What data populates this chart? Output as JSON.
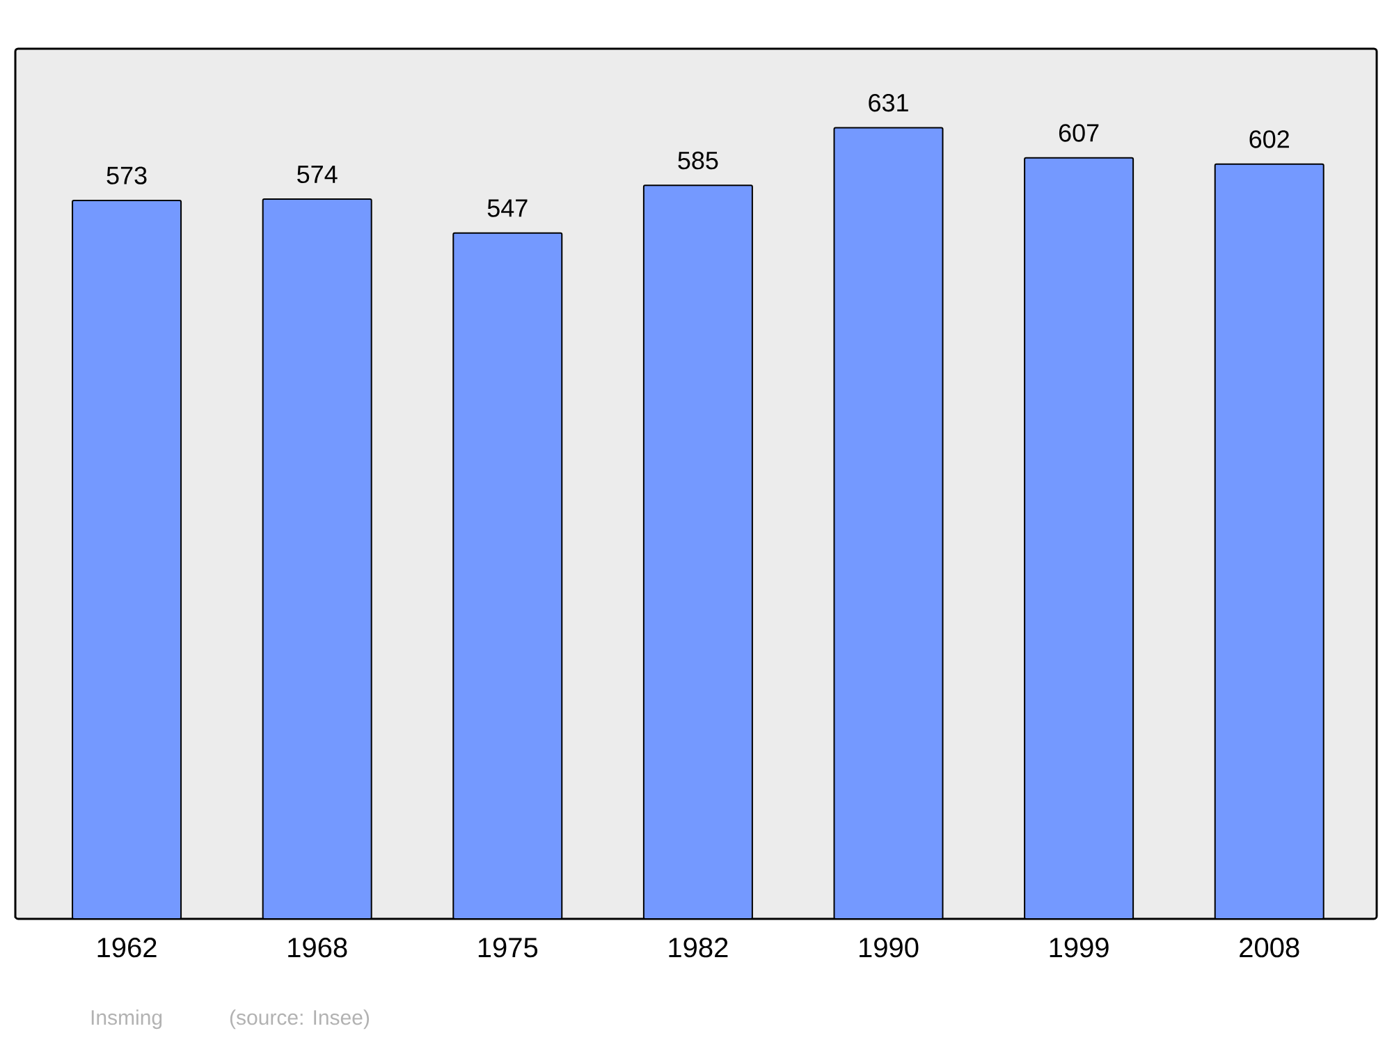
{
  "chart_data": {
    "type": "bar",
    "categories": [
      "1962",
      "1968",
      "1975",
      "1982",
      "1990",
      "1999",
      "2008"
    ],
    "values": [
      573,
      574,
      547,
      585,
      631,
      607,
      602
    ],
    "color": "#7499ff",
    "ylim": [
      0,
      694
    ],
    "data_labels": true,
    "annotations": [
      "Insming",
      "(source: Insee)"
    ]
  }
}
